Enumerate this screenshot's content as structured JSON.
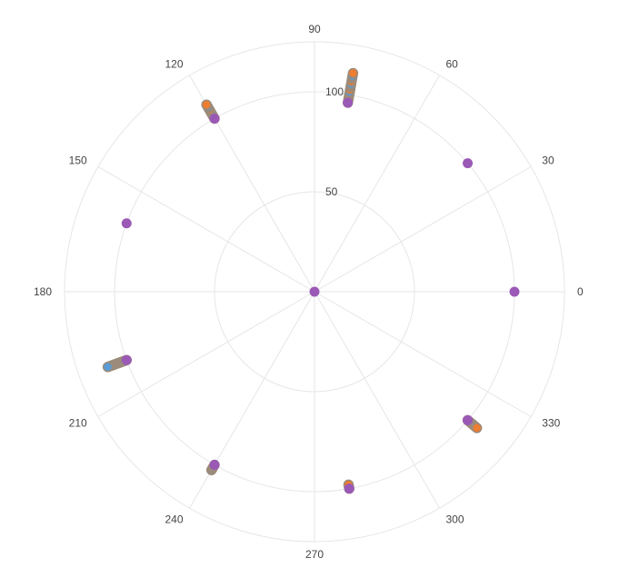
{
  "chart_data": {
    "type": "scatter",
    "coordinate_system": "polar",
    "angular_unit": "degrees",
    "angular_direction": "counterclockwise",
    "zero_angle": "east",
    "radial_range": [
      0,
      125
    ],
    "radial_grid": [
      50,
      100
    ],
    "radial_tick_labels": [
      "50",
      "100"
    ],
    "angular_grid": [
      0,
      30,
      60,
      90,
      120,
      150,
      180,
      210,
      240,
      270,
      300,
      330
    ],
    "angular_tick_labels": [
      "0",
      "30",
      "60",
      "90",
      "120",
      "150",
      "180",
      "210",
      "240",
      "270",
      "300",
      "330"
    ],
    "grid": true,
    "legend": "none",
    "colors": {
      "grid": "#e6e6e6",
      "outer_ring": "#e6e6e6",
      "tick_text": "#444444",
      "highlight_point": "#9b59b6",
      "trail_point": "#9b8b7a",
      "trail_accent_1": "#5b9bd5",
      "trail_accent_2": "#ed7d31"
    },
    "highlighted_points": [
      {
        "theta": 0,
        "r": 100
      },
      {
        "theta": 40,
        "r": 100
      },
      {
        "theta": 80,
        "r": 96
      },
      {
        "theta": 120,
        "r": 100
      },
      {
        "theta": 160,
        "r": 100
      },
      {
        "theta": 200,
        "r": 100
      },
      {
        "theta": 240,
        "r": 100
      },
      {
        "theta": 280,
        "r": 100
      },
      {
        "theta": 320,
        "r": 100
      },
      {
        "theta": 0,
        "r": 0
      }
    ],
    "trails": [
      {
        "theta": 80,
        "r_start": 96,
        "r_end": 111,
        "count": 12
      },
      {
        "theta": 120,
        "r_start": 100,
        "r_end": 108,
        "count": 9
      },
      {
        "theta": 200,
        "r_start": 100,
        "r_end": 110,
        "count": 14
      },
      {
        "theta": 240,
        "r_start": 100,
        "r_end": 103,
        "count": 4
      },
      {
        "theta": 280,
        "r_start": 100,
        "r_end": 98,
        "count": 3
      },
      {
        "theta": 320,
        "r_start": 100,
        "r_end": 106,
        "count": 9
      }
    ]
  }
}
